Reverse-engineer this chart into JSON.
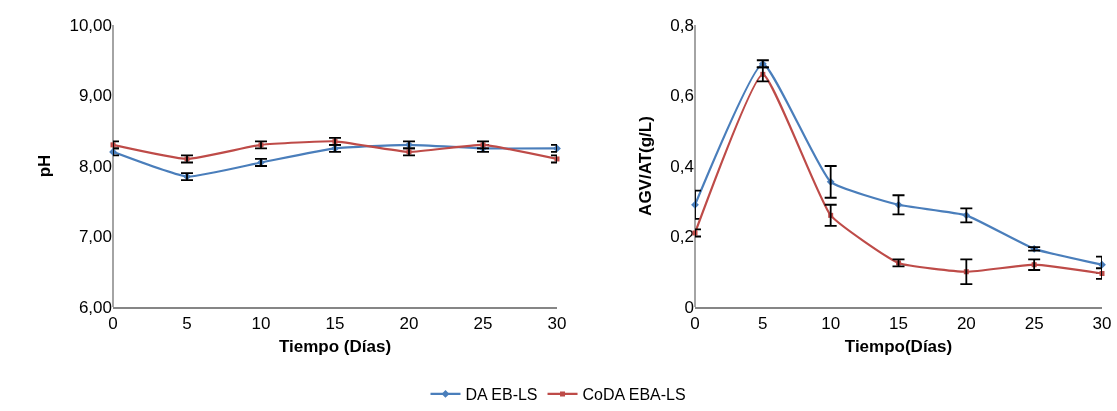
{
  "chart_data": [
    {
      "type": "line",
      "xlabel": "Tiempo (Días)",
      "ylabel": "pH",
      "x": [
        0,
        5,
        10,
        15,
        20,
        25,
        30
      ],
      "xlim": [
        0,
        30
      ],
      "xticks": [
        0,
        5,
        10,
        15,
        20,
        25,
        30
      ],
      "ylim": [
        6,
        10
      ],
      "yticks": [
        {
          "value": 6,
          "label": "6,00"
        },
        {
          "value": 7,
          "label": "7,00"
        },
        {
          "value": 8,
          "label": "8,00"
        },
        {
          "value": 9,
          "label": "9,00"
        },
        {
          "value": 10,
          "label": "10,00"
        }
      ],
      "grid": false,
      "legend": false,
      "series": [
        {
          "color": "#4a7ebb",
          "marker": "diamond",
          "values": [
            8.2,
            7.85,
            8.05,
            8.25,
            8.3,
            8.25,
            8.25
          ],
          "errors": [
            0.05,
            0.05,
            0.05,
            0.05,
            0.05,
            0.05,
            0.05
          ]
        },
        {
          "color": "#be4b48",
          "marker": "square",
          "values": [
            8.3,
            8.1,
            8.3,
            8.35,
            8.2,
            8.3,
            8.1
          ],
          "errors": [
            0.05,
            0.05,
            0.05,
            0.05,
            0.05,
            0.05,
            0.05
          ]
        }
      ]
    },
    {
      "type": "line",
      "xlabel": "Tiempo(Días)",
      "ylabel": "AGV/AT(g/L)",
      "x": [
        0,
        5,
        10,
        15,
        20,
        25,
        30
      ],
      "xlim": [
        0,
        30
      ],
      "xticks": [
        0,
        5,
        10,
        15,
        20,
        25,
        30
      ],
      "ylim": [
        0,
        0.8
      ],
      "yticks": [
        0,
        {
          "value": 0.2,
          "label": "0,2"
        },
        {
          "value": 0.4,
          "label": "0,4"
        },
        {
          "value": 0.6,
          "label": "0,6"
        },
        {
          "value": 0.8,
          "label": "0,8"
        }
      ],
      "grid": false,
      "legend": "bottom",
      "series": [
        {
          "name": "DA EB-LS",
          "color": "#4a7ebb",
          "marker": "diamond",
          "values": [
            0.29,
            0.69,
            0.355,
            0.29,
            0.26,
            0.165,
            0.12
          ],
          "errors": [
            0.04,
            0.01,
            0.045,
            0.027,
            0.02,
            0.005,
            0.023
          ]
        },
        {
          "name": "CoDA EBA-LS",
          "color": "#be4b48",
          "marker": "square",
          "values": [
            0.21,
            0.66,
            0.26,
            0.125,
            0.1,
            0.12,
            0.095
          ],
          "errors": [
            0.01,
            0.02,
            0.03,
            0.01,
            0.035,
            0.015,
            0.015
          ]
        }
      ]
    }
  ]
}
